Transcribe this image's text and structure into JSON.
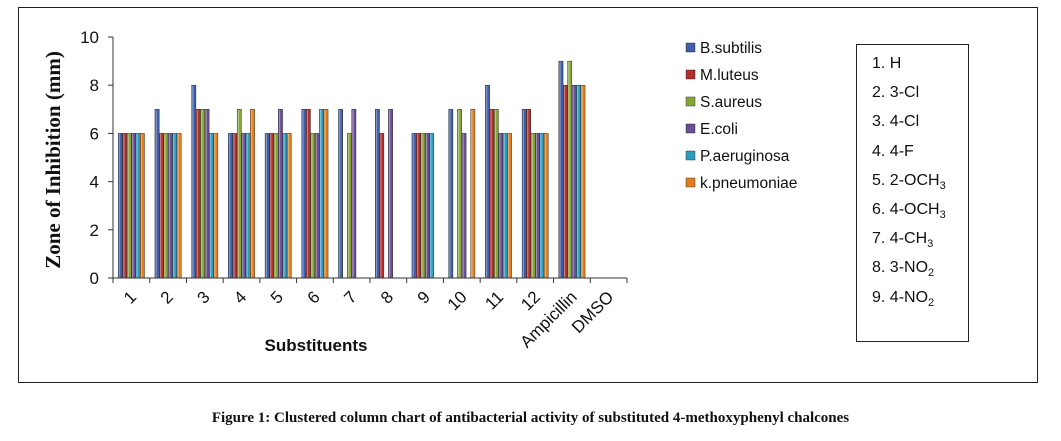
{
  "caption": "Figure 1: Clustered column chart of antibacterial activity of substituted 4-methoxyphenyl chalcones",
  "colors": {
    "B.subtilis": "#3F5FA8",
    "M.luteus": "#B0302D",
    "S.aureus": "#86A53A",
    "E.coli": "#6B4E93",
    "P.aeruginosa": "#2E9CC0",
    "k.pneumoniae": "#E07E22"
  },
  "key": {
    "items": [
      {
        "label": "1. H",
        "base": "1. H",
        "sub": "",
        "tail": ""
      },
      {
        "label": "2. 3-Cl",
        "base": "2.  3-Cl",
        "sub": "",
        "tail": ""
      },
      {
        "label": "3. 4-Cl",
        "base": "3.  4-Cl",
        "sub": "",
        "tail": ""
      },
      {
        "label": "4. 4-F",
        "base": "4.  4-F",
        "sub": "",
        "tail": ""
      },
      {
        "label": "5. 2-OCH3",
        "base": "5. 2-OCH",
        "sub": "3",
        "tail": ""
      },
      {
        "label": "6. 4-OCH3",
        "base": "6. 4-OCH",
        "sub": "3",
        "tail": ""
      },
      {
        "label": "7. 4-CH3",
        "base": "7. 4-CH",
        "sub": "3",
        "tail": ""
      },
      {
        "label": "8. 3-NO2",
        "base": "8. 3-NO",
        "sub": "2",
        "tail": ""
      },
      {
        "label": "9. 4-NO2",
        "base": "9. 4-NO",
        "sub": "2",
        "tail": ""
      }
    ]
  },
  "chart_data": {
    "type": "bar",
    "title": "",
    "xlabel": "Substituents",
    "ylabel": "Zone of Inhibition  (mm)",
    "ylim": [
      0,
      10
    ],
    "yticks": [
      0,
      2,
      4,
      6,
      8,
      10
    ],
    "grid": false,
    "legend_position": "right",
    "categories": [
      "1",
      "2",
      "3",
      "4",
      "5",
      "6",
      "7",
      "8",
      "9",
      "10",
      "11",
      "12",
      "Ampicillin",
      "DMSO"
    ],
    "series": [
      {
        "name": "B.subtilis",
        "values": [
          6,
          7,
          8,
          6,
          6,
          7,
          7,
          7,
          6,
          7,
          8,
          7,
          9,
          0
        ]
      },
      {
        "name": "M.luteus",
        "values": [
          6,
          6,
          7,
          6,
          6,
          7,
          0,
          6,
          6,
          0,
          7,
          7,
          8,
          0
        ]
      },
      {
        "name": "S.aureus",
        "values": [
          6,
          6,
          7,
          7,
          6,
          6,
          6,
          0,
          6,
          7,
          7,
          6,
          9,
          0
        ]
      },
      {
        "name": "E.coli",
        "values": [
          6,
          6,
          7,
          6,
          7,
          6,
          7,
          7,
          6,
          6,
          6,
          6,
          8,
          0
        ]
      },
      {
        "name": "P.aeruginosa",
        "values": [
          6,
          6,
          6,
          6,
          6,
          7,
          0,
          0,
          6,
          0,
          6,
          6,
          8,
          0
        ]
      },
      {
        "name": "k.pneumoniae",
        "values": [
          6,
          6,
          6,
          7,
          6,
          7,
          0,
          0,
          0,
          7,
          6,
          6,
          8,
          0
        ]
      }
    ]
  }
}
